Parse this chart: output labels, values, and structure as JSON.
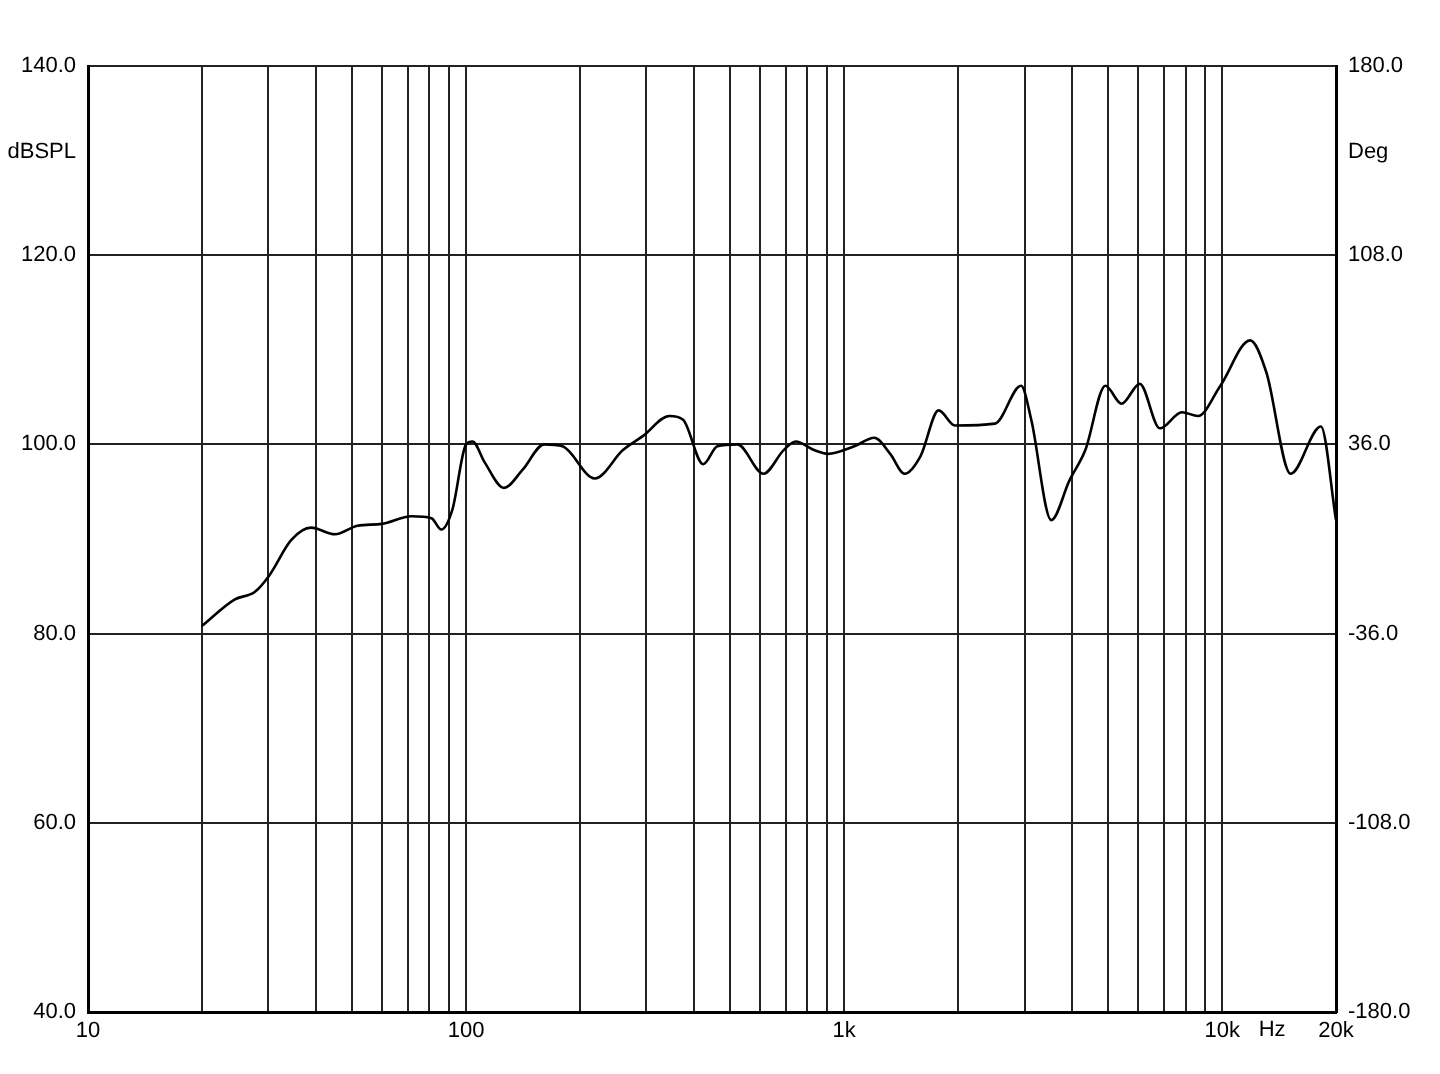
{
  "chart_data": {
    "type": "line",
    "xlabel": "Hz",
    "ylabel": "dBSPL",
    "y2label": "Deg",
    "log": "x",
    "grid": true,
    "legend": false,
    "marker": "none",
    "line_style": "solid",
    "x": [
      20,
      24.4,
      27.6,
      30.1,
      34.5,
      38.9,
      45,
      51.6,
      59.8,
      71.8,
      81,
      86,
      92,
      100,
      104,
      112,
      126,
      141,
      161,
      180,
      219,
      260,
      294,
      345,
      375,
      424,
      462,
      522,
      612,
      692,
      745,
      832,
      906,
      1064,
      1202,
      1324,
      1445,
      1594,
      1778,
      1964,
      2506,
      2938,
      3126,
      3531,
      3945,
      4345,
      4909,
      5418,
      6053,
      6839,
      7826,
      8630,
      9890,
      11860,
      13090,
      15170,
      18240,
      20000
    ],
    "series": [
      {
        "color": "#000000",
        "values": [
          80.8,
          83.6,
          84.4,
          86.1,
          89.9,
          91.2,
          90.5,
          91.4,
          91.6,
          92.4,
          92.2,
          91.0,
          93.1,
          100.0,
          100.3,
          98.1,
          95.4,
          97.3,
          100.0,
          99.8,
          96.4,
          99.4,
          100.9,
          103.0,
          102.6,
          97.9,
          99.8,
          100.0,
          96.9,
          99.4,
          100.3,
          99.4,
          99.0,
          99.8,
          100.7,
          99.0,
          96.9,
          98.8,
          103.6,
          102.0,
          102.2,
          106.2,
          102.6,
          92.0,
          96.2,
          99.4,
          106.2,
          104.3,
          106.4,
          101.7,
          103.4,
          103.0,
          106.2,
          111.0,
          107.6,
          96.9,
          101.9,
          92.0
        ]
      }
    ],
    "xlim": [
      10,
      20000
    ],
    "xticks": [
      10,
      {
        "value": 20,
        "label": null
      },
      {
        "value": 30,
        "label": null
      },
      {
        "value": 40,
        "label": null
      },
      {
        "value": 50,
        "label": null
      },
      {
        "value": 60,
        "label": null
      },
      {
        "value": 70,
        "label": null
      },
      {
        "value": 80,
        "label": null
      },
      {
        "value": 90,
        "label": null
      },
      100,
      {
        "value": 200,
        "label": null
      },
      {
        "value": 300,
        "label": null
      },
      {
        "value": 400,
        "label": null
      },
      {
        "value": 500,
        "label": null
      },
      {
        "value": 600,
        "label": null
      },
      {
        "value": 700,
        "label": null
      },
      {
        "value": 800,
        "label": null
      },
      {
        "value": 900,
        "label": null
      },
      {
        "value": 1000,
        "label": "1k"
      },
      {
        "value": 2000,
        "label": null
      },
      {
        "value": 3000,
        "label": null
      },
      {
        "value": 4000,
        "label": null
      },
      {
        "value": 5000,
        "label": null
      },
      {
        "value": 6000,
        "label": null
      },
      {
        "value": 7000,
        "label": null
      },
      {
        "value": 8000,
        "label": null
      },
      {
        "value": 9000,
        "label": null
      },
      {
        "value": 10000,
        "label": "10k"
      },
      {
        "value": 20000,
        "label": "20k"
      }
    ],
    "ylim": [
      40,
      140
    ],
    "yticks": [
      {
        "value": 40,
        "label": "40.0"
      },
      {
        "value": 60,
        "label": "60.0"
      },
      {
        "value": 80,
        "label": "80.0"
      },
      {
        "value": 100,
        "label": "100.0"
      },
      {
        "value": 120,
        "label": "120.0"
      },
      {
        "value": 140,
        "label": "140.0"
      }
    ],
    "y2lim": [
      -180,
      180
    ],
    "y2ticks": [
      {
        "value": -180,
        "label": "-180.0"
      },
      {
        "value": -108,
        "label": "-108.0"
      },
      {
        "value": -36,
        "label": "-36.0"
      },
      {
        "value": 36,
        "label": "36.0"
      },
      {
        "value": 108,
        "label": "108.0"
      },
      {
        "value": 180,
        "label": "180.0"
      }
    ]
  }
}
